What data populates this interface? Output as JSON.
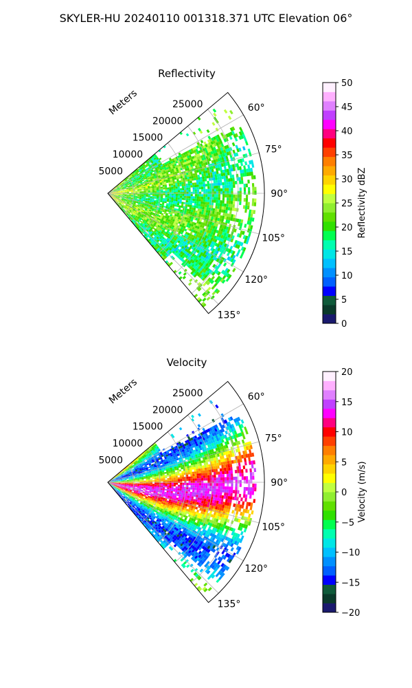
{
  "figure": {
    "suptitle": "SKYLER-HU  20240110  001318.371 UTC Elevation 06°"
  },
  "chart_data": [
    {
      "type": "heatmap",
      "projection": "polar-sector",
      "title": "Reflectivity",
      "range_label": "Meters",
      "range_ticks": [
        5000,
        10000,
        15000,
        20000,
        25000
      ],
      "range_tick_labels": [
        "5000",
        "10000",
        "15000",
        "20000",
        "25000"
      ],
      "rlim": [
        0,
        30000
      ],
      "theta_range_deg": [
        50,
        140
      ],
      "theta_ticks_deg": [
        60,
        75,
        90,
        105,
        120,
        135
      ],
      "theta_tick_labels": [
        "60°",
        "75°",
        "90°",
        "105°",
        "120°",
        "135°"
      ],
      "grid": true,
      "colorbar": {
        "label": "Reflectivity dBZ",
        "vmin": 0,
        "vmax": 50,
        "ticks": [
          0,
          5,
          10,
          15,
          20,
          25,
          30,
          35,
          40,
          45,
          50
        ],
        "tick_labels": [
          "0",
          "5",
          "10",
          "15",
          "20",
          "25",
          "30",
          "35",
          "40",
          "45",
          "50"
        ],
        "colors": [
          "#1a1a6e",
          "#0a3a2a",
          "#0f5a3a",
          "#0000ff",
          "#0060ff",
          "#0090ff",
          "#00c0ff",
          "#00e6e6",
          "#00ffb0",
          "#00ff50",
          "#30e000",
          "#60e000",
          "#90ee30",
          "#c0ff40",
          "#ffff00",
          "#ffd400",
          "#ffaa00",
          "#ff7f00",
          "#ff4000",
          "#ff0000",
          "#ff0080",
          "#ff00ff",
          "#c040ff",
          "#e080ff",
          "#ffb0ff",
          "#fff0ff"
        ]
      },
      "field_summary": "mostly 15–25 dBZ (green/yellow-green) with 25–35 dBZ near the radar"
    },
    {
      "type": "heatmap",
      "projection": "polar-sector",
      "title": "Velocity",
      "range_label": "Meters",
      "range_ticks": [
        5000,
        10000,
        15000,
        20000,
        25000
      ],
      "range_tick_labels": [
        "5000",
        "10000",
        "15000",
        "20000",
        "25000"
      ],
      "rlim": [
        0,
        30000
      ],
      "theta_range_deg": [
        50,
        140
      ],
      "theta_ticks_deg": [
        60,
        75,
        90,
        105,
        120,
        135
      ],
      "theta_tick_labels": [
        "60°",
        "75°",
        "90°",
        "105°",
        "120°",
        "135°"
      ],
      "grid": true,
      "colorbar": {
        "label": "Velocity (m/s)",
        "vmin": -20,
        "vmax": 20,
        "ticks": [
          -20,
          -15,
          -10,
          -5,
          0,
          5,
          10,
          15,
          20
        ],
        "tick_labels": [
          "−20",
          "−15",
          "−10",
          "−5",
          "0",
          "5",
          "10",
          "15",
          "20"
        ],
        "colors": [
          "#1a1a6e",
          "#0a3a2a",
          "#0f5a3a",
          "#0000ff",
          "#0060ff",
          "#0090ff",
          "#00c0ff",
          "#00e6e6",
          "#00ffb0",
          "#00ff50",
          "#30e000",
          "#60e000",
          "#90ee30",
          "#c0ff40",
          "#ffff00",
          "#ffd400",
          "#ffaa00",
          "#ff7f00",
          "#ff4000",
          "#ff0000",
          "#ff0080",
          "#ff00ff",
          "#c040ff",
          "#e080ff",
          "#ffb0ff",
          "#fff0ff"
        ]
      },
      "field_summary": "banded velocity field ranging from about −10 to +15 m/s"
    }
  ]
}
